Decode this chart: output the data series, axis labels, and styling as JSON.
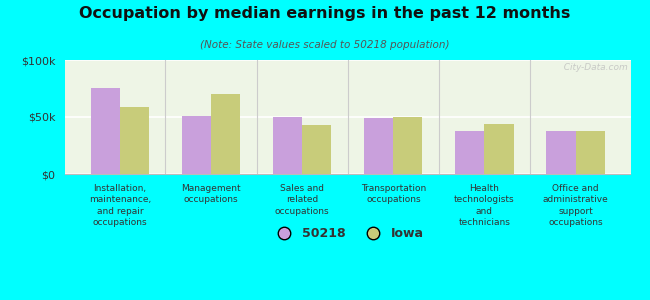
{
  "title": "Occupation by median earnings in the past 12 months",
  "subtitle": "(Note: State values scaled to 50218 population)",
  "background_color": "#00FFFF",
  "categories": [
    "Installation,\nmaintenance,\nand repair\noccupations",
    "Management\noccupations",
    "Sales and\nrelated\noccupations",
    "Transportation\noccupations",
    "Health\ntechnologists\nand\ntechnicians",
    "Office and\nadministrative\nsupport\noccupations"
  ],
  "values_50218": [
    75000,
    51000,
    50000,
    49000,
    38000,
    38000
  ],
  "values_iowa": [
    59000,
    70000,
    43000,
    50000,
    44000,
    38000
  ],
  "color_50218": "#c9a0dc",
  "color_iowa": "#c8cc7a",
  "ylim": [
    0,
    100000
  ],
  "yticks": [
    0,
    50000,
    100000
  ],
  "ytick_labels": [
    "$0",
    "$50k",
    "$100k"
  ],
  "legend_labels": [
    "50218",
    "Iowa"
  ],
  "watermark": "  City-Data.com"
}
